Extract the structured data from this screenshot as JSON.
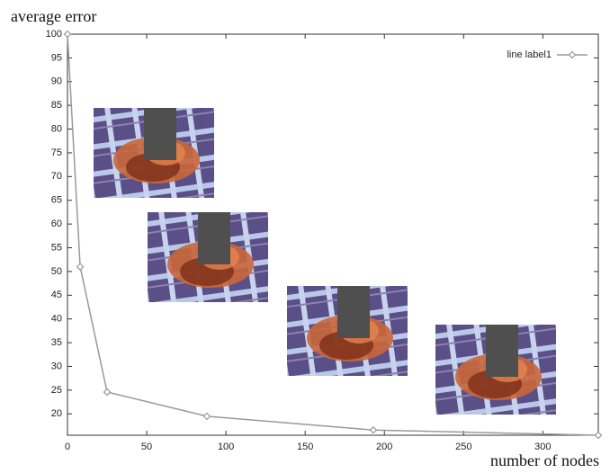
{
  "chart_data": {
    "type": "line",
    "y_label": "average error",
    "x_label": "number of nodes",
    "xlim": [
      0,
      335
    ],
    "ylim": [
      15.5,
      100
    ],
    "xticks": [
      0,
      50,
      100,
      150,
      200,
      250,
      300
    ],
    "yticks": [
      20,
      25,
      30,
      35,
      40,
      45,
      50,
      55,
      60,
      65,
      70,
      75,
      80,
      85,
      90,
      95,
      100
    ],
    "legend": "top-right",
    "series": [
      {
        "name": "line label1",
        "color": "#999999",
        "x": [
          0,
          8,
          25,
          88,
          193,
          335
        ],
        "values": [
          100,
          51,
          24.6,
          19.5,
          16.6,
          15.5
        ]
      }
    ]
  }
}
